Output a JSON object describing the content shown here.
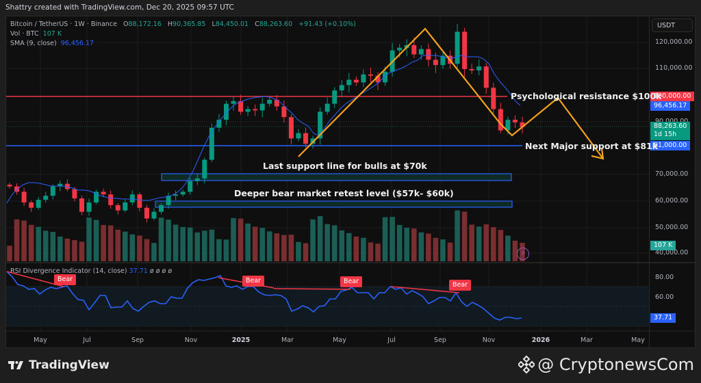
{
  "header": {
    "attribution": "Shattry created with TradingView.com, Dec 20, 2025 09:57 UTC"
  },
  "legend": {
    "symbol": "Bitcoin / TetherUS · 1W · Binance",
    "open_label": "O",
    "open": "88,172.16",
    "high_label": "H",
    "high": "90,365.85",
    "low_label": "L",
    "low": "84,450.01",
    "close_label": "C",
    "close": "88,263.60",
    "change": "+91.43 (+0.10%)",
    "vol_label": "Vol · BTC",
    "vol": "107 K",
    "sma_label": "SMA (9, close)",
    "sma": "96,456.17"
  },
  "price_axis": {
    "currency_button": "USDT",
    "ticks": [
      "120,000.00",
      "110,000.00",
      "90,000.00",
      "70,000.00",
      "60,000.00",
      "50,000.00",
      "40,000.00"
    ],
    "tags": {
      "resistance": "100,000.00",
      "sma": "96,456.17",
      "last_price": "88,263.60",
      "countdown": "1d 15h",
      "support": "81,000.00",
      "volume": "107 K"
    }
  },
  "rsi": {
    "title": "RSI Divergence Indicator (14, close)",
    "value": "37.71",
    "extra": "ø ø ø ø",
    "ticks": [
      "80.00",
      "60.00"
    ],
    "value_tag": "37.71",
    "bear_label": "Bear"
  },
  "time_axis": [
    "May",
    "Jul",
    "Sep",
    "Nov",
    "2025",
    "Mar",
    "May",
    "Jul",
    "Sep",
    "Nov",
    "2026",
    "Mar",
    "May"
  ],
  "annotations": {
    "resistance": "Psychological resistance $100k",
    "support": "Next Major support at $81k",
    "bulls_support": "Last support line for bulls at $70k",
    "bear_retest": "Deeper bear market retest level ($57k- $60k)"
  },
  "footer": {
    "brand": "TradingView",
    "credit": "@ CryptonewsCom"
  },
  "colors": {
    "up": "#089981",
    "down": "#f23645",
    "sma": "#2962ff",
    "resistance": "#f23645",
    "support": "#2962ff",
    "projection": "#f7a21b",
    "rsi_line": "#2962ff"
  },
  "chart_data": {
    "type": "candlestick",
    "title": "Bitcoin / TetherUS · 1W · Binance",
    "xlabel": "",
    "ylabel": "USDT",
    "ylim": [
      38000,
      127000
    ],
    "x_ticks": [
      "May",
      "Jul",
      "Sep",
      "Nov",
      "2025",
      "Mar",
      "May",
      "Jul",
      "Sep",
      "Nov",
      "2026",
      "Mar",
      "May"
    ],
    "horizontal_levels": [
      {
        "name": "Psychological resistance",
        "value": 100000,
        "color": "#f23645"
      },
      {
        "name": "Next Major support",
        "value": 81000,
        "color": "#2962ff"
      }
    ],
    "zones": [
      {
        "name": "Last support line for bulls",
        "from": 68500,
        "to": 71000
      },
      {
        "name": "Deeper bear market retest level",
        "from": 57500,
        "to": 60000
      }
    ],
    "projection_path": [
      {
        "label": "Apr 2025 low",
        "value": 76000
      },
      {
        "label": "Aug 2025 high",
        "value": 124500
      },
      {
        "label": "Dec 2025 low",
        "value": 84500
      },
      {
        "label": "Feb 2026 projected",
        "value": 99000
      },
      {
        "label": "Apr 2026 projected",
        "value": 74500
      }
    ],
    "series": [
      {
        "name": "SMA (9, close)",
        "last": 96456.17
      },
      {
        "name": "Close",
        "last": 88263.6
      },
      {
        "name": "Volume",
        "last": "107K"
      }
    ],
    "weekly_closes_approx": [
      66000,
      64000,
      60000,
      58000,
      61000,
      62500,
      66000,
      67000,
      65000,
      61500,
      56500,
      60000,
      64000,
      63000,
      59000,
      57000,
      60000,
      63000,
      58000,
      54000,
      56500,
      59000,
      62500,
      63000,
      64000,
      68000,
      69000,
      76000,
      88000,
      91000,
      97000,
      98000,
      94000,
      95000,
      94500,
      97000,
      98500,
      96000,
      92000,
      84000,
      86000,
      82000,
      84000,
      94000,
      97000,
      102000,
      104000,
      106000,
      105000,
      108000,
      107500,
      105000,
      109000,
      117000,
      118000,
      119000,
      115500,
      117500,
      113500,
      111500,
      115000,
      112000,
      124000,
      110000,
      109500,
      111000,
      103000,
      95000,
      87000,
      91000,
      90000,
      88263.6
    ],
    "rsi": {
      "name": "RSI Divergence Indicator (14, close)",
      "last": 37.71,
      "ylim": [
        20,
        90
      ],
      "levels": [
        70,
        30
      ],
      "bear_divergences": 4
    }
  }
}
